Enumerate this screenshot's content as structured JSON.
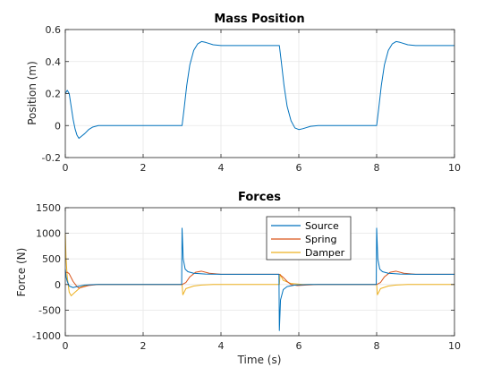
{
  "colors": {
    "source": "#0072BD",
    "spring": "#D95319",
    "damper": "#EDB120",
    "grid": "#e6e6e6",
    "axis": "#262626"
  },
  "chart_data": [
    {
      "type": "line",
      "title": "Mass Position",
      "xlabel": "",
      "ylabel": "Position (m)",
      "xlim": [
        0,
        10
      ],
      "ylim": [
        -0.2,
        0.6
      ],
      "xticks": [
        "0",
        "2",
        "4",
        "6",
        "8",
        "10"
      ],
      "yticks": [
        "-0.2",
        "0",
        "0.2",
        "0.4",
        "0.6"
      ],
      "grid": true,
      "series": [
        {
          "name": "Position",
          "color_key": "source",
          "points": [
            [
              0,
              0.2
            ],
            [
              0.05,
              0.22
            ],
            [
              0.1,
              0.2
            ],
            [
              0.15,
              0.12
            ],
            [
              0.2,
              0.04
            ],
            [
              0.25,
              -0.02
            ],
            [
              0.3,
              -0.06
            ],
            [
              0.35,
              -0.08
            ],
            [
              0.4,
              -0.07
            ],
            [
              0.5,
              -0.05
            ],
            [
              0.6,
              -0.025
            ],
            [
              0.7,
              -0.01
            ],
            [
              0.85,
              0
            ],
            [
              3.0,
              0
            ],
            [
              3.05,
              0.1
            ],
            [
              3.12,
              0.25
            ],
            [
              3.2,
              0.38
            ],
            [
              3.3,
              0.47
            ],
            [
              3.4,
              0.51
            ],
            [
              3.5,
              0.525
            ],
            [
              3.6,
              0.52
            ],
            [
              3.8,
              0.505
            ],
            [
              4.0,
              0.5
            ],
            [
              5.5,
              0.5
            ],
            [
              5.55,
              0.4
            ],
            [
              5.62,
              0.25
            ],
            [
              5.7,
              0.12
            ],
            [
              5.8,
              0.03
            ],
            [
              5.9,
              -0.015
            ],
            [
              6.0,
              -0.025
            ],
            [
              6.1,
              -0.02
            ],
            [
              6.3,
              -0.005
            ],
            [
              6.5,
              0
            ],
            [
              8.0,
              0
            ],
            [
              8.05,
              0.1
            ],
            [
              8.12,
              0.25
            ],
            [
              8.2,
              0.38
            ],
            [
              8.3,
              0.47
            ],
            [
              8.4,
              0.51
            ],
            [
              8.5,
              0.525
            ],
            [
              8.6,
              0.52
            ],
            [
              8.8,
              0.505
            ],
            [
              9.0,
              0.5
            ],
            [
              10,
              0.5
            ]
          ]
        }
      ]
    },
    {
      "type": "line",
      "title": "Forces",
      "xlabel": "Time (s)",
      "ylabel": "Force (N)",
      "xlim": [
        0,
        10
      ],
      "ylim": [
        -1000,
        1500
      ],
      "xticks": [
        "0",
        "2",
        "4",
        "6",
        "8",
        "10"
      ],
      "yticks": [
        "-1000",
        "-500",
        "0",
        "500",
        "1000",
        "1500"
      ],
      "grid": true,
      "legend": {
        "placement": "top-right-inset"
      },
      "series": [
        {
          "name": "Source",
          "color_key": "source",
          "points": [
            [
              0,
              300
            ],
            [
              0.02,
              150
            ],
            [
              0.05,
              60
            ],
            [
              0.1,
              -30
            ],
            [
              0.2,
              -60
            ],
            [
              0.3,
              -40
            ],
            [
              0.5,
              -10
            ],
            [
              0.8,
              0
            ],
            [
              2.99,
              0
            ],
            [
              3.0,
              1100
            ],
            [
              3.03,
              500
            ],
            [
              3.08,
              300
            ],
            [
              3.15,
              250
            ],
            [
              3.3,
              220
            ],
            [
              3.6,
              205
            ],
            [
              4.0,
              200
            ],
            [
              5.49,
              200
            ],
            [
              5.5,
              -900
            ],
            [
              5.53,
              -300
            ],
            [
              5.6,
              -100
            ],
            [
              5.7,
              -40
            ],
            [
              5.9,
              -10
            ],
            [
              6.3,
              0
            ],
            [
              7.99,
              0
            ],
            [
              8.0,
              1100
            ],
            [
              8.03,
              500
            ],
            [
              8.08,
              300
            ],
            [
              8.15,
              250
            ],
            [
              8.3,
              220
            ],
            [
              8.6,
              205
            ],
            [
              9.0,
              200
            ],
            [
              10,
              200
            ]
          ]
        },
        {
          "name": "Spring",
          "color_key": "spring",
          "points": [
            [
              0,
              230
            ],
            [
              0.05,
              240
            ],
            [
              0.1,
              210
            ],
            [
              0.2,
              60
            ],
            [
              0.3,
              -40
            ],
            [
              0.35,
              -70
            ],
            [
              0.45,
              -50
            ],
            [
              0.6,
              -20
            ],
            [
              0.85,
              0
            ],
            [
              3.0,
              0
            ],
            [
              3.1,
              40
            ],
            [
              3.2,
              150
            ],
            [
              3.35,
              240
            ],
            [
              3.5,
              260
            ],
            [
              3.7,
              220
            ],
            [
              4.0,
              200
            ],
            [
              5.5,
              200
            ],
            [
              5.6,
              140
            ],
            [
              5.7,
              60
            ],
            [
              5.8,
              0
            ],
            [
              5.95,
              -20
            ],
            [
              6.2,
              -10
            ],
            [
              6.5,
              0
            ],
            [
              8.0,
              0
            ],
            [
              8.1,
              40
            ],
            [
              8.2,
              150
            ],
            [
              8.35,
              240
            ],
            [
              8.5,
              260
            ],
            [
              8.7,
              220
            ],
            [
              9.0,
              200
            ],
            [
              10,
              200
            ]
          ]
        },
        {
          "name": "Damper",
          "color_key": "damper",
          "points": [
            [
              0,
              1000
            ],
            [
              0.02,
              500
            ],
            [
              0.05,
              150
            ],
            [
              0.1,
              -150
            ],
            [
              0.15,
              -220
            ],
            [
              0.25,
              -150
            ],
            [
              0.4,
              -50
            ],
            [
              0.6,
              -10
            ],
            [
              0.8,
              0
            ],
            [
              3.0,
              0
            ],
            [
              3.02,
              -200
            ],
            [
              3.1,
              -80
            ],
            [
              3.3,
              -30
            ],
            [
              3.5,
              -10
            ],
            [
              3.8,
              0
            ],
            [
              5.5,
              0
            ],
            [
              5.52,
              200
            ],
            [
              5.6,
              80
            ],
            [
              5.8,
              20
            ],
            [
              6.1,
              0
            ],
            [
              8.0,
              0
            ],
            [
              8.02,
              -200
            ],
            [
              8.1,
              -80
            ],
            [
              8.3,
              -30
            ],
            [
              8.5,
              -10
            ],
            [
              8.8,
              0
            ],
            [
              10,
              0
            ]
          ]
        }
      ]
    }
  ]
}
